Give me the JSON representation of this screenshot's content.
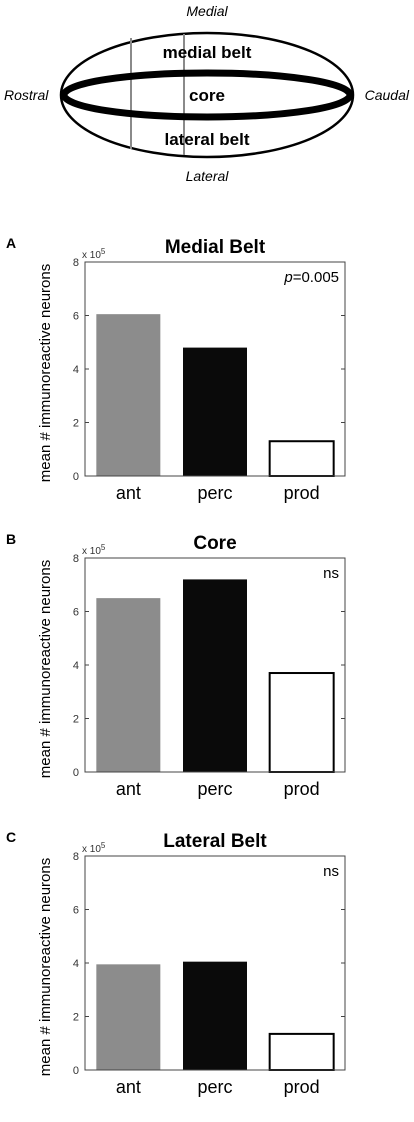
{
  "diagram": {
    "regions": {
      "medial_belt": "medial belt",
      "core": "core",
      "lateral_belt": "lateral belt"
    },
    "orientation": {
      "medial": "Medial",
      "lateral": "Lateral",
      "rostral": "Rostral",
      "caudal": "Caudal"
    }
  },
  "colors": {
    "ant": "#8c8c8c",
    "perc": "#0a0a0a",
    "prod": "#ffffff",
    "axis": "#444444"
  },
  "chart_data": [
    {
      "panel_label": "A",
      "type": "bar",
      "title": "Medial Belt",
      "categories": [
        "ant",
        "perc",
        "prod"
      ],
      "values": [
        6.05,
        4.8,
        1.3
      ],
      "ylabel": "mean # immunoreactive neurons",
      "y_multiplier": "x 10",
      "y_exponent": "5",
      "ylim": [
        0,
        8
      ],
      "yticks": [
        0,
        2,
        4,
        6,
        8
      ],
      "annotation_italic": "p",
      "annotation": "=0.005"
    },
    {
      "panel_label": "B",
      "type": "bar",
      "title": "Core",
      "categories": [
        "ant",
        "perc",
        "prod"
      ],
      "values": [
        6.5,
        7.2,
        3.7
      ],
      "ylabel": "mean # immunoreactive neurons",
      "y_multiplier": "x 10",
      "y_exponent": "5",
      "ylim": [
        0,
        8
      ],
      "yticks": [
        0,
        2,
        4,
        6,
        8
      ],
      "annotation_italic": "",
      "annotation": "ns"
    },
    {
      "panel_label": "C",
      "type": "bar",
      "title": "Lateral Belt",
      "categories": [
        "ant",
        "perc",
        "prod"
      ],
      "values": [
        3.95,
        4.05,
        1.35
      ],
      "ylabel": "mean # immunoreactive neurons",
      "y_multiplier": "x 10",
      "y_exponent": "5",
      "ylim": [
        0,
        8
      ],
      "yticks": [
        0,
        2,
        4,
        6,
        8
      ],
      "annotation_italic": "",
      "annotation": "ns"
    }
  ]
}
